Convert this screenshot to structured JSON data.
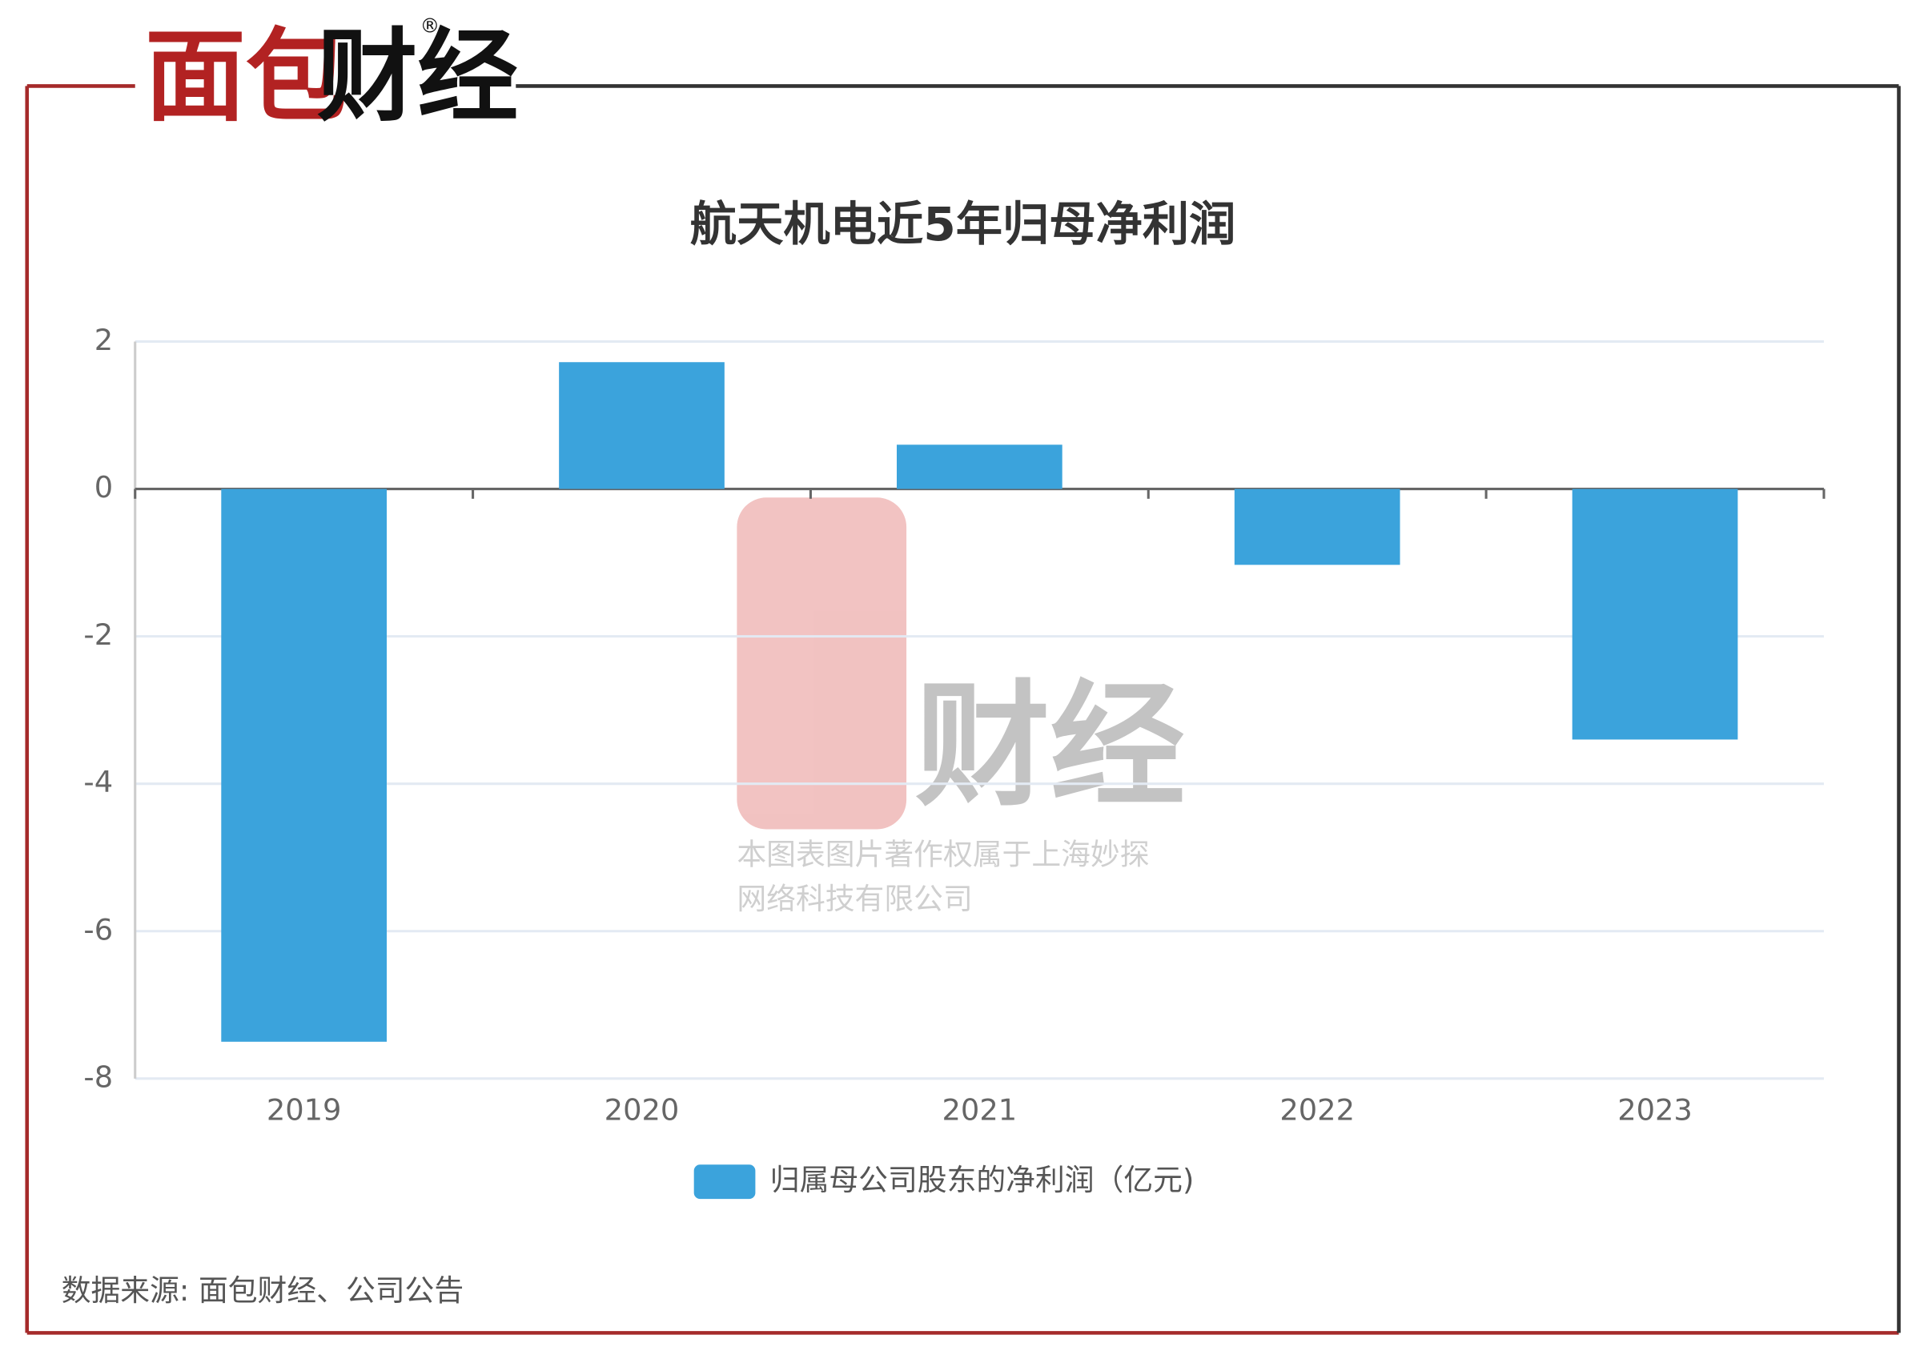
{
  "chart_data": {
    "type": "bar",
    "logo": [
      "面包",
      "财经"
    ],
    "title": "航天机电近5年归母净利润",
    "categories": [
      "2019",
      "2020",
      "2021",
      "2022",
      "2023"
    ],
    "series": [
      {
        "name": "归属母公司股东的净利润（亿元)",
        "color": "#3ba3dc",
        "values": [
          -7.5,
          1.72,
          0.6,
          -1.03,
          -3.4
        ]
      }
    ],
    "ylim": [
      -8,
      2
    ],
    "yticks": [
      -8,
      -6,
      -4,
      -2,
      0,
      2
    ],
    "grid": true,
    "watermark": [
      "本图表图片著作权属于上海妙探",
      "网络科技有限公司"
    ],
    "source": "数据来源: 面包财经、公司公告"
  }
}
